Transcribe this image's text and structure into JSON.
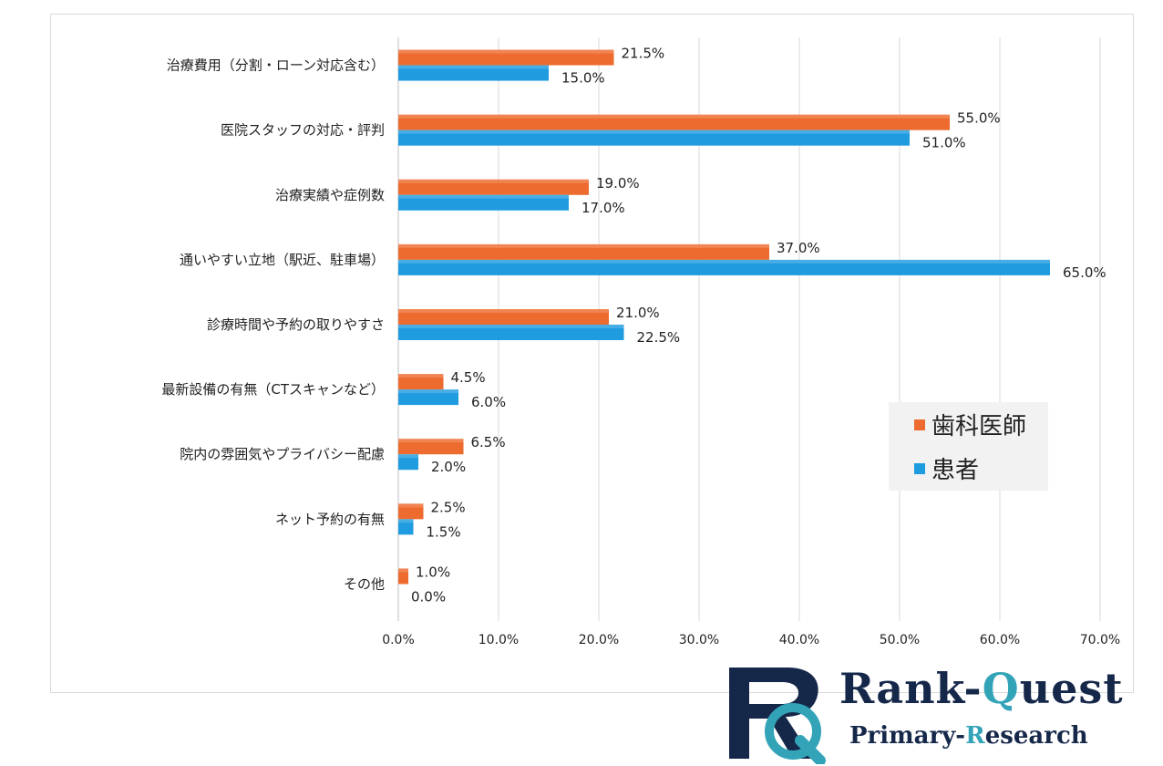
{
  "chart_data": {
    "type": "bar",
    "orientation": "horizontal",
    "categories": [
      "治療費用（分割・ローン対応含む）",
      "医院スタッフの対応・評判",
      "治療実績や症例数",
      "通いやすい立地（駅近、駐車場）",
      "診療時間や予約の取りやすさ",
      "最新設備の有無（CTスキャンなど）",
      "院内の雰囲気やプライバシー配慮",
      "ネット予約の有無",
      "その他"
    ],
    "series": [
      {
        "name": "歯科医師",
        "color": "#ed6b2e",
        "values": [
          21.5,
          55.0,
          19.0,
          37.0,
          21.0,
          4.5,
          6.5,
          2.5,
          1.0
        ],
        "labels": [
          "21.5%",
          "55.0%",
          "19.0%",
          "37.0%",
          "21.0%",
          "4.5%",
          "6.5%",
          "2.5%",
          "1.0%"
        ]
      },
      {
        "name": "患者",
        "color": "#1f9be0",
        "values": [
          15.0,
          51.0,
          17.0,
          65.0,
          22.5,
          6.0,
          2.0,
          1.5,
          0.0
        ],
        "labels": [
          "15.0%",
          "51.0%",
          "17.0%",
          "65.0%",
          "22.5%",
          "6.0%",
          "2.0%",
          "1.5%",
          "0.0%"
        ]
      }
    ],
    "xlim": [
      0,
      70
    ],
    "xticks": [
      0,
      10,
      20,
      30,
      40,
      50,
      60,
      70
    ],
    "xtick_labels": [
      "0.0%",
      "10.0%",
      "20.0%",
      "30.0%",
      "40.0%",
      "50.0%",
      "60.0%",
      "70.0%"
    ],
    "grid": true,
    "legend_position": "right"
  },
  "logo": {
    "brand_prefix": "Rank-",
    "brand_q": "Q",
    "brand_suffix": "uest",
    "sub_prefix": "Primary-",
    "sub_r": "R",
    "sub_suffix": "esearch",
    "colors": {
      "navy": "#16284a",
      "teal": "#33a4b8"
    }
  }
}
